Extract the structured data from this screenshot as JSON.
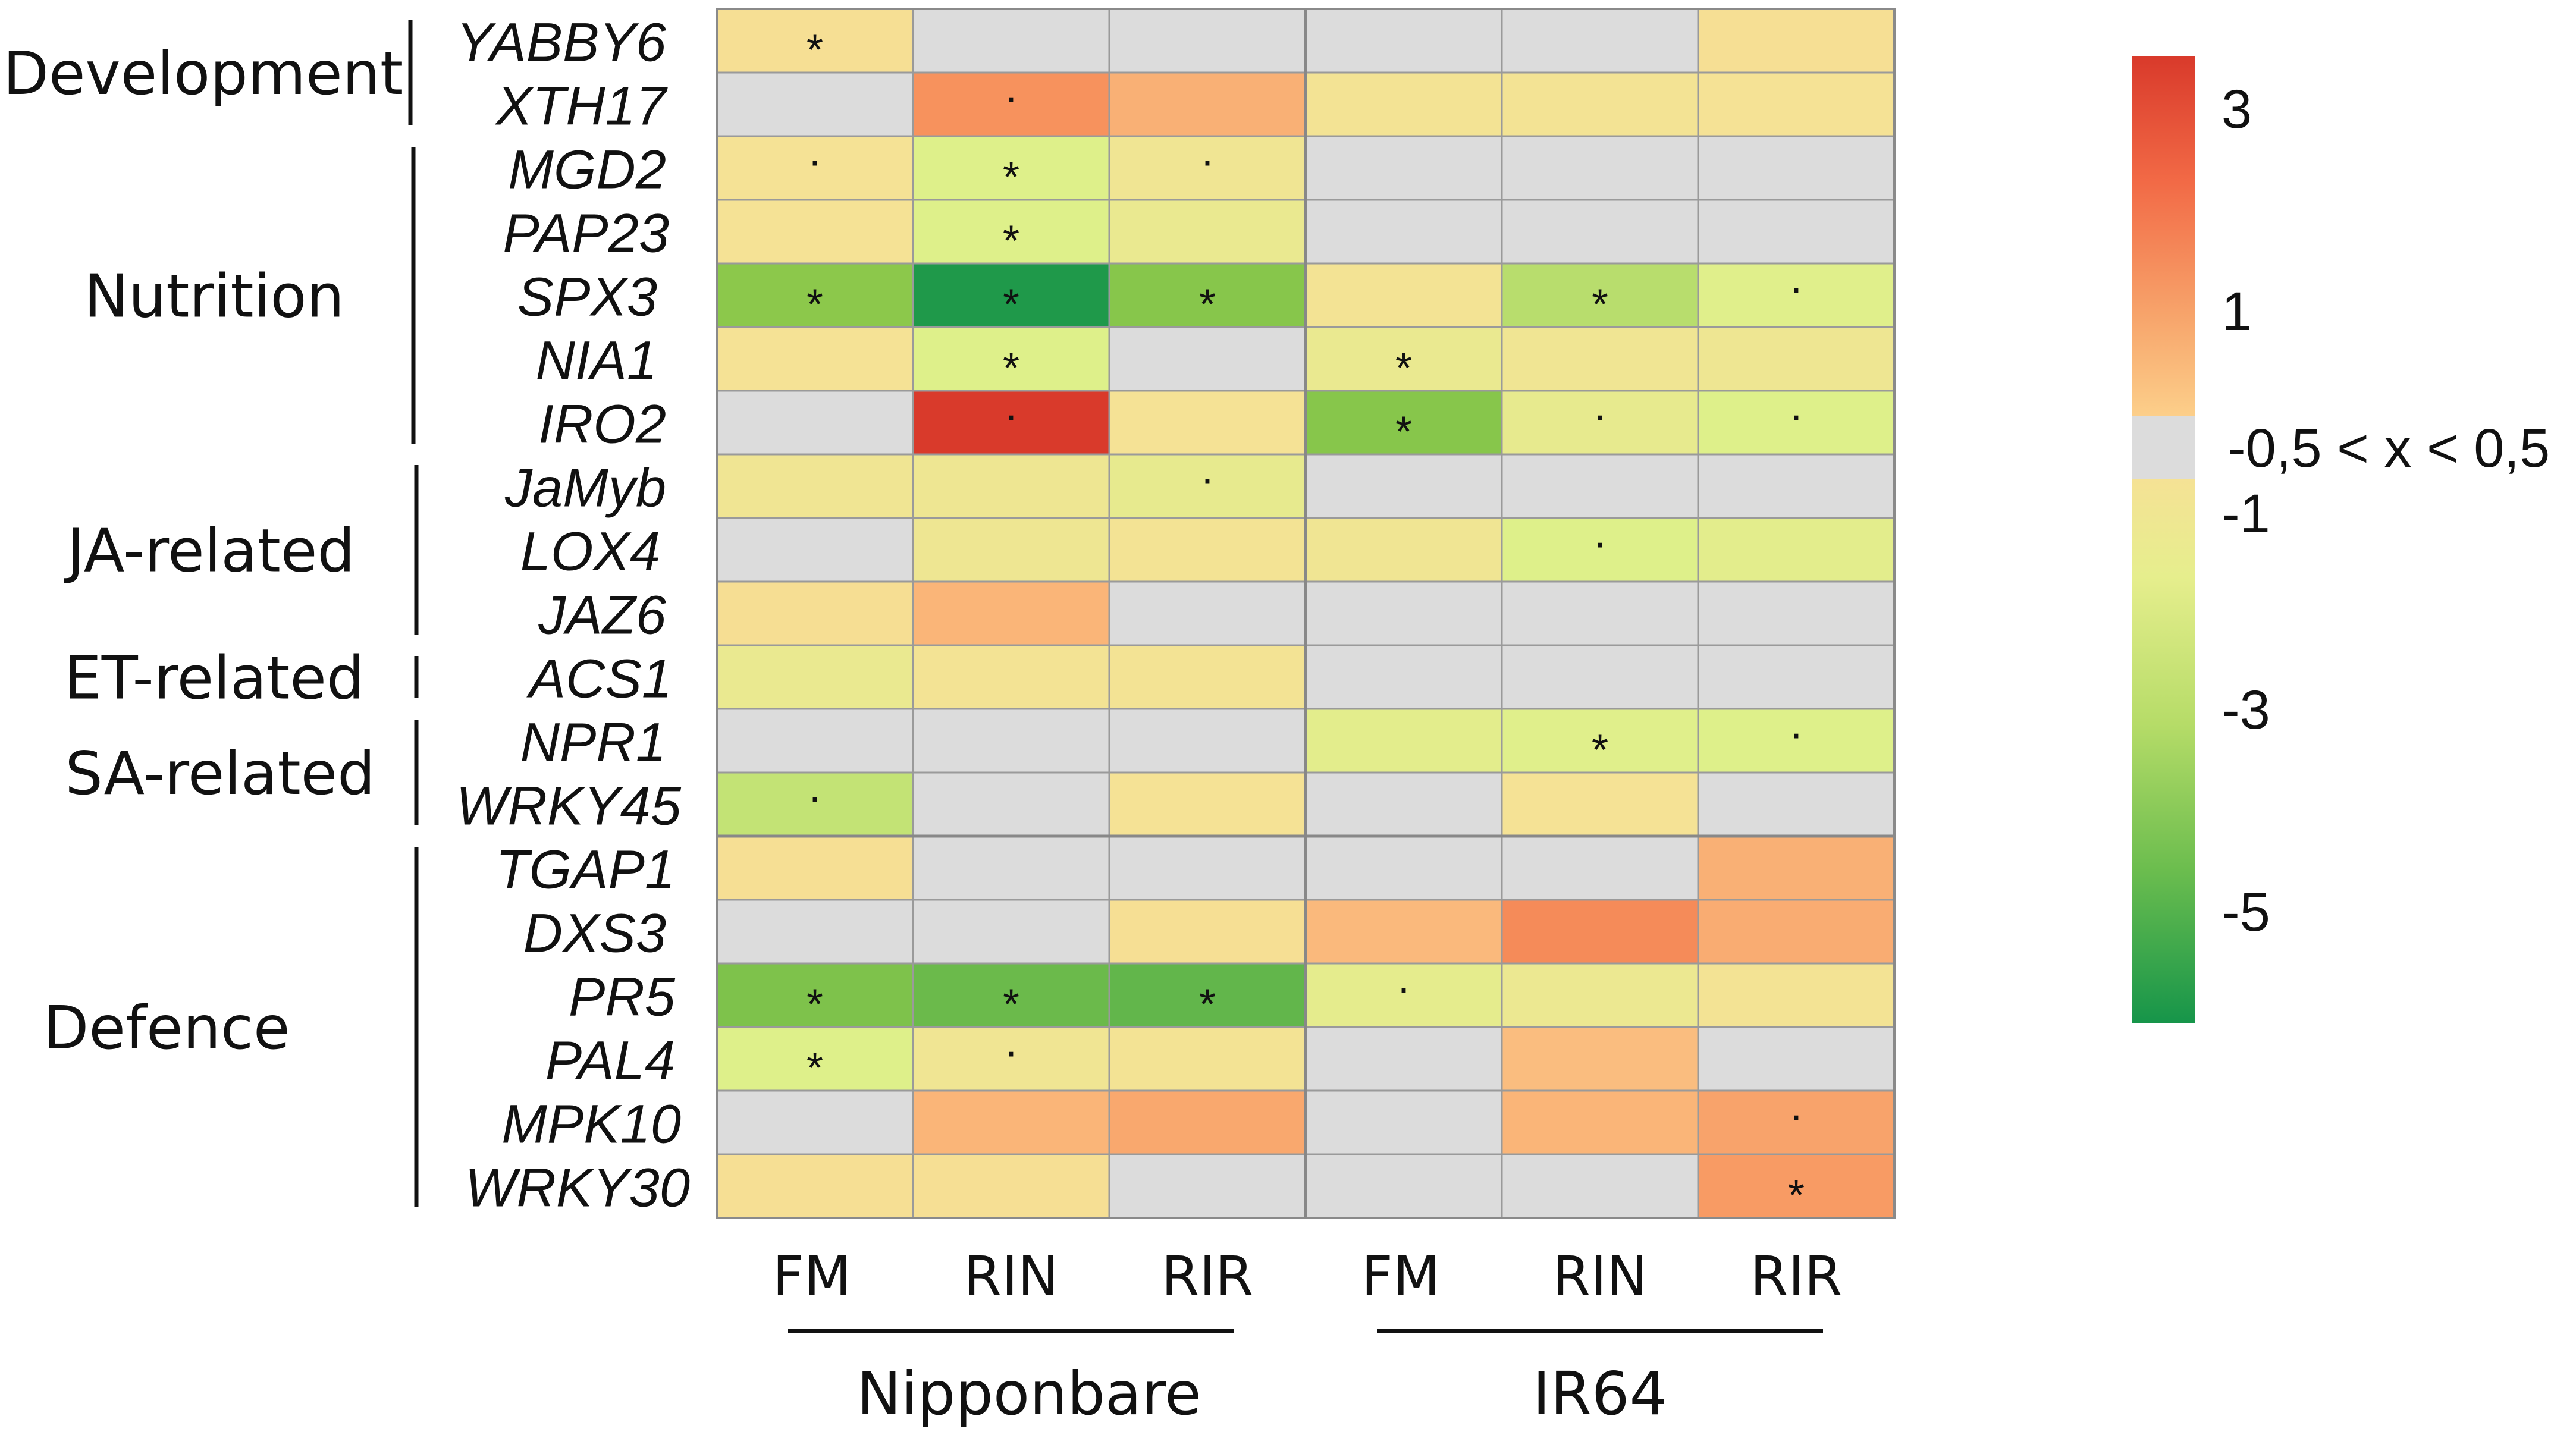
{
  "chart_data": {
    "type": "heatmap",
    "title": "",
    "columns": [
      "FM",
      "RIN",
      "RIR",
      "FM",
      "RIN",
      "RIR"
    ],
    "column_groups": [
      {
        "name": "Nipponbare",
        "columns": [
          0,
          1,
          2
        ]
      },
      {
        "name": "IR64",
        "columns": [
          3,
          4,
          5
        ]
      }
    ],
    "rows": [
      "YABBY6",
      "XTH17",
      "MGD2",
      "PAP23",
      "SPX3",
      "NIA1",
      "IRO2",
      "JaMyb",
      "LOX4",
      "JAZ6",
      "ACS1",
      "NPR1",
      "WRKY45",
      "TGAP1",
      "DXS3",
      "PR5",
      "PAL4",
      "MPK10",
      "WRKY30"
    ],
    "row_categories": [
      {
        "name": "Development",
        "rows": [
          0,
          1
        ]
      },
      {
        "name": "Nutrition",
        "rows": [
          2,
          6
        ]
      },
      {
        "name": "JA-related",
        "rows": [
          7,
          9
        ]
      },
      {
        "name": "ET-related",
        "rows": [
          10,
          10
        ]
      },
      {
        "name": "SA-related",
        "rows": [
          11,
          12
        ]
      },
      {
        "name": "Defence",
        "rows": [
          13,
          18
        ]
      }
    ],
    "values": [
      [
        -0.8,
        0,
        0,
        0,
        0,
        -0.8
      ],
      [
        0,
        2.2,
        1.5,
        -1.1,
        -1.1,
        -1.0
      ],
      [
        -1.0,
        -2.0,
        -1.2,
        0,
        0,
        0
      ],
      [
        -1.0,
        -2.0,
        -1.5,
        0,
        0,
        0
      ],
      [
        -3.5,
        -5.8,
        -3.6,
        -1.1,
        -2.7,
        -1.9
      ],
      [
        -1.0,
        -2.0,
        0,
        -1.5,
        -1.2,
        -1.3
      ],
      [
        0,
        3.5,
        -1.0,
        -3.6,
        -1.6,
        -2.0
      ],
      [
        -1.2,
        -1.3,
        -1.6,
        0,
        0,
        0
      ],
      [
        0,
        -1.3,
        -1.1,
        -1.2,
        -2.0,
        -1.8
      ],
      [
        -0.7,
        1.4,
        0,
        0,
        0,
        0
      ],
      [
        -1.5,
        -1.1,
        -1.1,
        0,
        0,
        0
      ],
      [
        0,
        0,
        0,
        -1.8,
        -1.9,
        -2.0
      ],
      [
        -2.5,
        0,
        -1.0,
        0,
        -1.0,
        0
      ],
      [
        -0.8,
        0,
        0,
        0,
        0,
        1.5
      ],
      [
        0,
        0,
        -0.8,
        1.3,
        2.3,
        1.6
      ],
      [
        -3.8,
        -4.2,
        -4.4,
        -1.7,
        -1.4,
        -1.1
      ],
      [
        -2.0,
        -1.2,
        -1.1,
        0,
        1.2,
        0
      ],
      [
        0,
        1.4,
        1.7,
        0,
        1.4,
        1.8
      ],
      [
        -0.8,
        -0.8,
        0,
        0,
        0,
        2.0
      ]
    ],
    "significance": [
      [
        "*",
        "",
        "",
        "",
        "",
        ""
      ],
      [
        "",
        "·",
        "",
        "",
        "",
        ""
      ],
      [
        "·",
        "*",
        "·",
        "",
        "",
        ""
      ],
      [
        "",
        "*",
        "",
        "",
        "",
        ""
      ],
      [
        "*",
        "*",
        "*",
        "",
        "*",
        "·"
      ],
      [
        "",
        "*",
        "",
        "*",
        "",
        ""
      ],
      [
        "",
        "·",
        "",
        "*",
        "·",
        "·"
      ],
      [
        "",
        "",
        "·",
        "",
        "",
        ""
      ],
      [
        "",
        "",
        "",
        "",
        "·",
        ""
      ],
      [
        "",
        "",
        "",
        "",
        "",
        ""
      ],
      [
        "",
        "",
        "",
        "",
        "",
        ""
      ],
      [
        "",
        "",
        "",
        "",
        "*",
        "·"
      ],
      [
        "·",
        "",
        "",
        "",
        "",
        ""
      ],
      [
        "",
        "",
        "",
        "",
        "",
        ""
      ],
      [
        "",
        "",
        "",
        "",
        "",
        ""
      ],
      [
        "*",
        "*",
        "*",
        "·",
        "",
        ""
      ],
      [
        "*",
        "·",
        "",
        "",
        "",
        ""
      ],
      [
        "",
        "",
        "",
        "",
        "",
        "·"
      ],
      [
        "",
        "",
        "",
        "",
        "",
        "*"
      ]
    ],
    "colorbar": {
      "ticks": [
        "3",
        "1",
        "-1",
        "-3",
        "-5"
      ],
      "neutral_label": "-0,5 < x < 0,5",
      "range": [
        -6,
        3.5
      ]
    },
    "colors": {
      "neutral": "#dcdcdc",
      "grid": "#9a9a9a",
      "scale": [
        "#16954a",
        "#8cc84b",
        "#def08a",
        "#f5e295",
        "#fbc686",
        "#f7925d",
        "#d93a2b"
      ]
    }
  }
}
